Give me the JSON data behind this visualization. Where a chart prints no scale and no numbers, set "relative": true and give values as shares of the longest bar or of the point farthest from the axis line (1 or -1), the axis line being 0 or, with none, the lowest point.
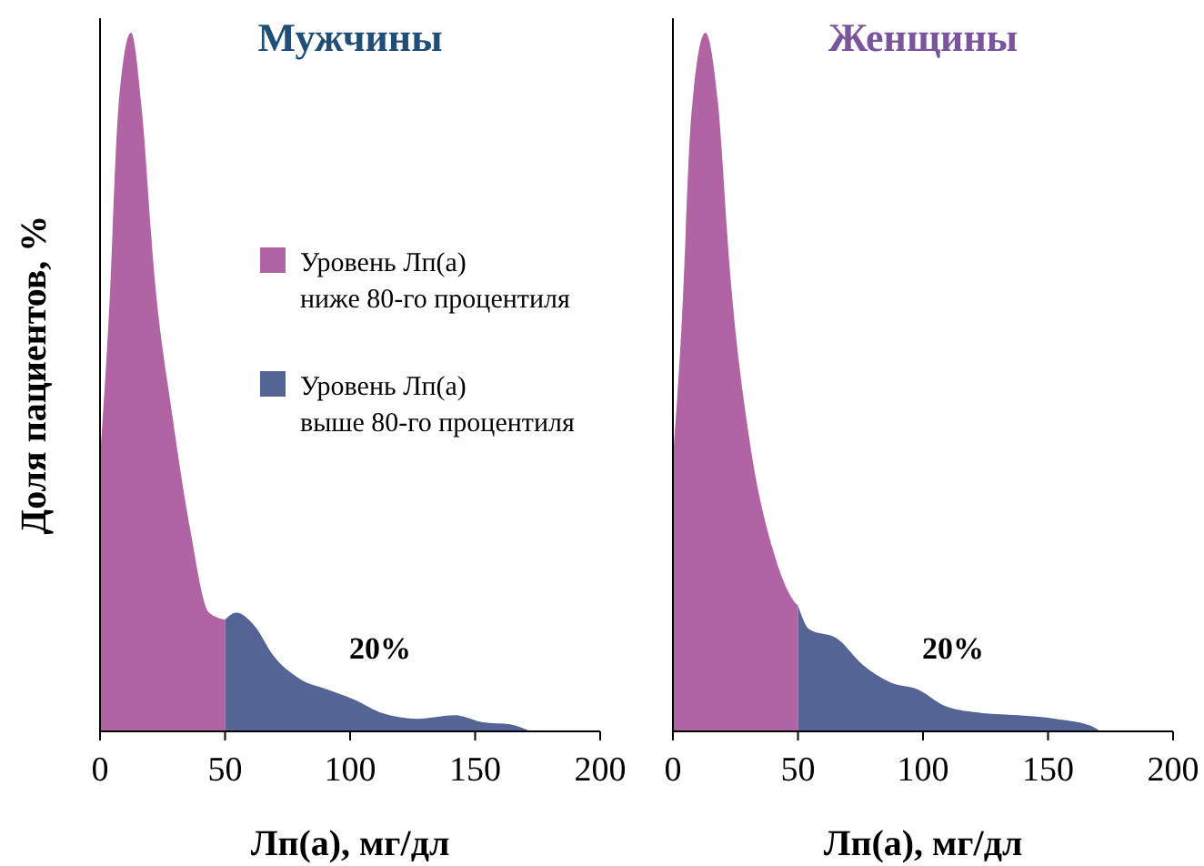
{
  "chart_data": [
    {
      "type": "area",
      "title": "Мужчины",
      "xlabel": "Лп(а), мг/дл",
      "ylabel": "Доля пациентов, %",
      "relative": true,
      "xlim": [
        0,
        200
      ],
      "xticks": [
        0,
        50,
        100,
        150,
        200
      ],
      "legend": "right",
      "annotations": [
        "20%"
      ],
      "series": [
        {
          "name": "Уровень Лп(а)\nниже 80-го процентиля",
          "color": "#b064a4",
          "x": [
            0,
            3.6,
            7.3,
            12.4,
            16.7,
            21.8,
            29,
            36,
            43.6,
            50
          ],
          "values": [
            0.39,
            0.6,
            0.89,
            1,
            0.89,
            0.65,
            0.45,
            0.29,
            0.17,
            0.16
          ]
        },
        {
          "name": "Уровень Лп(а)\nвыше 80-го процентиля",
          "color": "#546494",
          "x": [
            50,
            54.5,
            62,
            69,
            80,
            91,
            102,
            113,
            127,
            142,
            153,
            164,
            172
          ],
          "values": [
            0.16,
            0.17,
            0.15,
            0.11,
            0.075,
            0.06,
            0.045,
            0.026,
            0.018,
            0.023,
            0.013,
            0.01,
            0
          ]
        }
      ]
    },
    {
      "type": "area",
      "title": "Женщины",
      "xlabel": "Лп(а), мг/дл",
      "relative": true,
      "xlim": [
        0,
        200
      ],
      "xticks": [
        0,
        50,
        100,
        150,
        200
      ],
      "annotations": [
        "20%"
      ],
      "series": [
        {
          "color": "#b064a4",
          "x": [
            0,
            3.6,
            7.3,
            13,
            18,
            23,
            30.5,
            40,
            48.7,
            50
          ],
          "values": [
            0.39,
            0.59,
            0.88,
            1,
            0.9,
            0.65,
            0.42,
            0.26,
            0.185,
            0.18
          ]
        },
        {
          "color": "#546494",
          "x": [
            50,
            54.5,
            65.5,
            76,
            87,
            98,
            109,
            124,
            138,
            153,
            167,
            171
          ],
          "values": [
            0.18,
            0.146,
            0.133,
            0.095,
            0.07,
            0.06,
            0.036,
            0.026,
            0.023,
            0.018,
            0.008,
            0
          ]
        }
      ]
    }
  ]
}
